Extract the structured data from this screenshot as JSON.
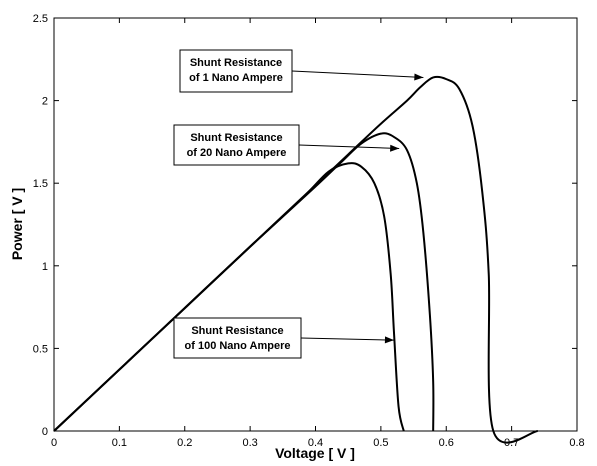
{
  "chart_data": {
    "type": "line",
    "xlabel": "Voltage [ V ]",
    "ylabel": "Power [ V ]",
    "xlim": [
      0,
      0.8
    ],
    "ylim": [
      0,
      2.5
    ],
    "xticks": [
      "0",
      "0.1",
      "0.2",
      "0.3",
      "0.4",
      "0.5",
      "0.6",
      "0.7",
      "0.8"
    ],
    "yticks": [
      "0",
      "0.5",
      "1",
      "1.5",
      "2",
      "2.5"
    ],
    "grid": false,
    "line_color": "#000000",
    "series": [
      {
        "x": [
          0,
          0.1,
          0.2,
          0.3,
          0.4,
          0.45,
          0.5,
          0.54,
          0.56,
          0.58,
          0.6,
          0.62,
          0.64,
          0.655,
          0.665,
          0.672,
          0.74
        ],
        "y": [
          0,
          0.372,
          0.744,
          1.116,
          1.488,
          1.674,
          1.86,
          2.0,
          2.08,
          2.14,
          2.13,
          2.07,
          1.85,
          1.45,
          0.95,
          0.0,
          0.0
        ]
      },
      {
        "x": [
          0,
          0.1,
          0.2,
          0.3,
          0.4,
          0.44,
          0.47,
          0.5,
          0.52,
          0.54,
          0.555,
          0.565,
          0.575,
          0.58,
          0.58
        ],
        "y": [
          0,
          0.372,
          0.744,
          1.116,
          1.48,
          1.63,
          1.74,
          1.8,
          1.78,
          1.7,
          1.5,
          1.2,
          0.7,
          0.3,
          0.0
        ]
      },
      {
        "x": [
          0,
          0.1,
          0.2,
          0.3,
          0.38,
          0.42,
          0.45,
          0.47,
          0.49,
          0.505,
          0.515,
          0.52,
          0.527,
          0.535
        ],
        "y": [
          0,
          0.372,
          0.744,
          1.116,
          1.41,
          1.57,
          1.62,
          1.6,
          1.5,
          1.3,
          0.95,
          0.6,
          0.15,
          0.0
        ]
      }
    ],
    "annotations": [
      {
        "lines": [
          "Shunt Resistance",
          "of 1 Nano Ampere"
        ],
        "target": [
          0.565,
          2.14
        ]
      },
      {
        "lines": [
          "Shunt Resistance",
          "of 20 Nano Ampere"
        ],
        "target": [
          0.528,
          1.71
        ]
      },
      {
        "lines": [
          "Shunt Resistance",
          "of 100 Nano Ampere"
        ],
        "target": [
          0.52,
          0.55
        ]
      }
    ]
  }
}
